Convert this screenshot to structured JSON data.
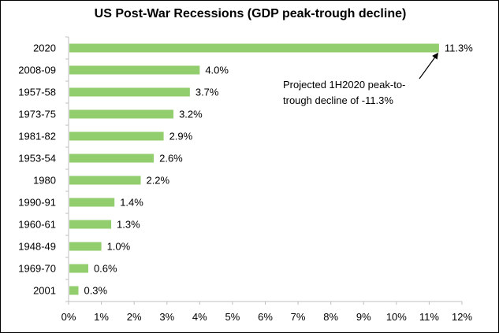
{
  "chart_data": {
    "type": "bar",
    "orientation": "horizontal",
    "title": "US Post-War Recessions (GDP peak-trough decline)",
    "xlabel": "",
    "ylabel": "",
    "categories": [
      "2020",
      "2008-09",
      "1957-58",
      "1973-75",
      "1981-82",
      "1953-54",
      "1980",
      "1990-91",
      "1960-61",
      "1948-49",
      "1969-70",
      "2001"
    ],
    "values": [
      11.3,
      4.0,
      3.7,
      3.2,
      2.9,
      2.6,
      2.2,
      1.4,
      1.3,
      1.0,
      0.6,
      0.3
    ],
    "value_labels": [
      "11.3%",
      "4.0%",
      "3.7%",
      "3.2%",
      "2.9%",
      "2.6%",
      "2.2%",
      "1.4%",
      "1.3%",
      "1.0%",
      "0.6%",
      "0.3%"
    ],
    "xlim": [
      0,
      12
    ],
    "x_ticks": [
      0,
      1,
      2,
      3,
      4,
      5,
      6,
      7,
      8,
      9,
      10,
      11,
      12
    ],
    "x_tick_labels": [
      "0%",
      "1%",
      "2%",
      "3%",
      "4%",
      "5%",
      "6%",
      "7%",
      "8%",
      "9%",
      "10%",
      "11%",
      "12%"
    ],
    "grid": false,
    "legend": "none",
    "bar_color": "#92cd6e",
    "annotation": {
      "lines": [
        "Projected 1H2020 peak-to-",
        "trough decline of -11.3%"
      ],
      "points_to": "2020"
    }
  }
}
